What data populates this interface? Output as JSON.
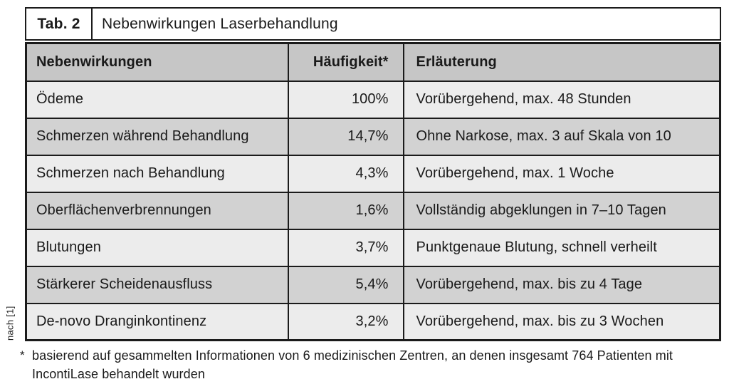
{
  "figure": {
    "source": "nach [1]",
    "caption": {
      "tag": "Tab. 2",
      "title": "Nebenwirkungen Laserbehandlung"
    },
    "table": {
      "columns": [
        "Nebenwirkungen",
        "Häufigkeit*",
        "Erläuterung"
      ],
      "rows": [
        {
          "name": "Ödeme",
          "frequency": "100%",
          "note": "Vorübergehend, max. 48 Stunden"
        },
        {
          "name": "Schmerzen während Behandlung",
          "frequency": "14,7%",
          "note": "Ohne Narkose, max. 3 auf Skala von 10"
        },
        {
          "name": "Schmerzen nach Behandlung",
          "frequency": "4,3%",
          "note": "Vorübergehend, max. 1 Woche"
        },
        {
          "name": "Oberflächenverbrennungen",
          "frequency": "1,6%",
          "note": "Vollständig abgeklungen in 7–10 Tagen"
        },
        {
          "name": "Blutungen",
          "frequency": "3,7%",
          "note": "Punktgenaue Blutung, schnell verheilt"
        },
        {
          "name": "Stärkerer Scheidenausfluss",
          "frequency": "5,4%",
          "note": "Vorübergehend, max. bis zu 4 Tage"
        },
        {
          "name": "De-novo Dranginkontinenz",
          "frequency": "3,2%",
          "note": "Vorübergehend, max. bis zu 3 Wochen"
        }
      ]
    },
    "footnote": {
      "marker": "*",
      "text": "basierend auf gesammelten Informationen von 6 medizinischen Zentren, an denen insgesamt 764 Patienten mit IncontiLase behandelt wurden"
    }
  },
  "colors": {
    "border": "#1b1b1b",
    "header_bg": "#c6c6c6",
    "row_odd_bg": "#ececec",
    "row_even_bg": "#d2d2d2",
    "caption_bg": "#ffffff",
    "text": "#1a1a1a"
  }
}
